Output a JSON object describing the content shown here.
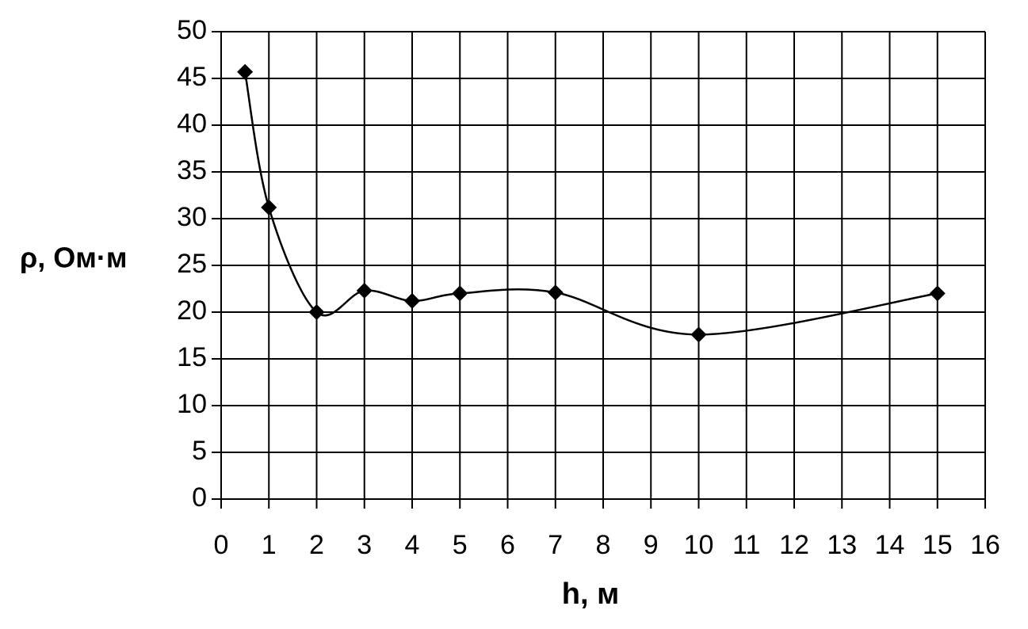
{
  "chart_data": {
    "type": "line",
    "x_label": "h, м",
    "y_label": "ρ, Ом·м",
    "x": [
      0.5,
      1,
      2,
      3,
      4,
      5,
      7,
      10,
      15
    ],
    "values": [
      45.7,
      31.2,
      20,
      22.3,
      21.2,
      22,
      22.1,
      17.6,
      22
    ],
    "color": "#000000",
    "smooth": true,
    "marker": "diamond",
    "grid": true,
    "xlim": [
      0,
      16
    ],
    "xticks": [
      0,
      1,
      2,
      3,
      4,
      5,
      6,
      7,
      8,
      9,
      10,
      11,
      12,
      13,
      14,
      15,
      16
    ],
    "ylim": [
      0,
      50
    ],
    "yticks": [
      0,
      5,
      10,
      15,
      20,
      25,
      30,
      35,
      40,
      45,
      50
    ]
  }
}
